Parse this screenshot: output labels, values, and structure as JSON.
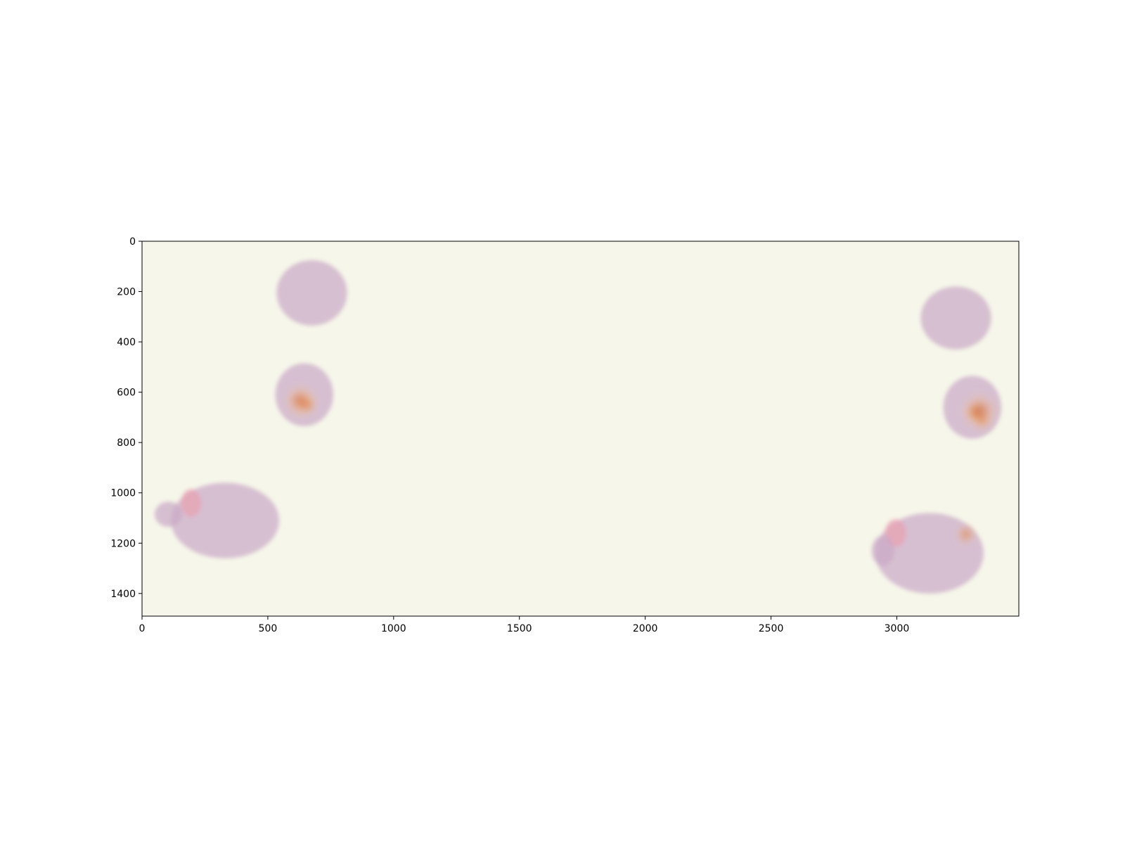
{
  "chart_data": {
    "type": "heatmap",
    "title": "",
    "xlabel": "",
    "ylabel": "",
    "xlim": [
      0,
      3485
    ],
    "ylim": [
      1490,
      0
    ],
    "x_ticks": [
      0,
      500,
      1000,
      1500,
      2000,
      2500,
      3000
    ],
    "y_ticks": [
      0,
      200,
      400,
      600,
      800,
      1000,
      1200,
      1400
    ],
    "grid": false,
    "background_color": "#f6f6ea",
    "tissue_color": "#c9a8c6",
    "tissue_pink_color": "#e8a3b3",
    "heatmap_colors": [
      "#f4c99a",
      "#e87a35",
      "#b9472e",
      "#3a2a5e"
    ],
    "tissue_regions": [
      {
        "cx": 675,
        "cy": 205,
        "rx": 140,
        "ry": 130
      },
      {
        "cx": 645,
        "cy": 610,
        "rx": 115,
        "ry": 125
      },
      {
        "cx": 330,
        "cy": 1110,
        "rx": 215,
        "ry": 150
      },
      {
        "cx": 195,
        "cy": 1040,
        "rx": 40,
        "ry": 55,
        "pink": true
      },
      {
        "cx": 105,
        "cy": 1085,
        "rx": 55,
        "ry": 50
      },
      {
        "cx": 3235,
        "cy": 305,
        "rx": 140,
        "ry": 125
      },
      {
        "cx": 3300,
        "cy": 660,
        "rx": 115,
        "ry": 125
      },
      {
        "cx": 3130,
        "cy": 1240,
        "rx": 215,
        "ry": 160
      },
      {
        "cx": 2995,
        "cy": 1160,
        "rx": 42,
        "ry": 55,
        "pink": true
      },
      {
        "cx": 2945,
        "cy": 1230,
        "rx": 45,
        "ry": 60
      }
    ],
    "hotspots": [
      {
        "x": 630,
        "y": 635,
        "r": 55,
        "intensity": 0.55
      },
      {
        "x": 655,
        "y": 650,
        "r": 30,
        "intensity": 0.8
      },
      {
        "x": 3310,
        "y": 680,
        "r": 30,
        "intensity": 1.0
      },
      {
        "x": 3340,
        "y": 715,
        "r": 25,
        "intensity": 0.85
      },
      {
        "x": 3330,
        "y": 675,
        "r": 65,
        "intensity": 0.4
      },
      {
        "x": 3275,
        "y": 1165,
        "r": 28,
        "intensity": 0.8
      }
    ]
  }
}
